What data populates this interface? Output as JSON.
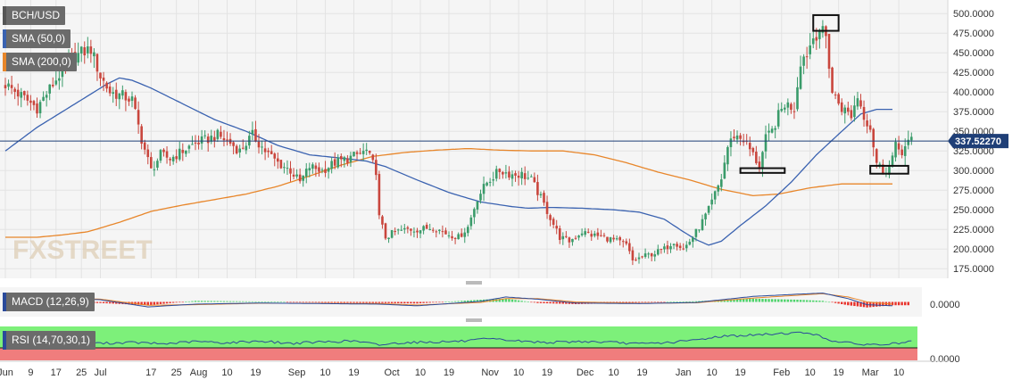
{
  "chart_data": {
    "type": "candlestick",
    "symbol": "BCH/USD",
    "current_price": "337.52270",
    "price_axis": {
      "ylim": [
        165,
        515
      ],
      "ticks": [
        {
          "v": 500,
          "label": "500.0000"
        },
        {
          "v": 475,
          "label": "475.0000"
        },
        {
          "v": 450,
          "label": "450.0000"
        },
        {
          "v": 425,
          "label": "425.0000"
        },
        {
          "v": 400,
          "label": "400.0000"
        },
        {
          "v": 375,
          "label": "375.0000"
        },
        {
          "v": 350,
          "label": "350.0000"
        },
        {
          "v": 325,
          "label": "325.0000"
        },
        {
          "v": 300,
          "label": "300.0000"
        },
        {
          "v": 275,
          "label": "275.0000"
        },
        {
          "v": 250,
          "label": "250.0000"
        },
        {
          "v": 225,
          "label": "225.0000"
        },
        {
          "v": 200,
          "label": "200.0000"
        },
        {
          "v": 175,
          "label": "175.0000"
        }
      ]
    },
    "x_axis_ticks": [
      {
        "day": 0,
        "label": "Jun"
      },
      {
        "day": 8,
        "label": "9"
      },
      {
        "day": 16,
        "label": "17"
      },
      {
        "day": 24,
        "label": "25"
      },
      {
        "day": 30,
        "label": "Jul"
      },
      {
        "day": 46,
        "label": "17"
      },
      {
        "day": 54,
        "label": "25"
      },
      {
        "day": 61,
        "label": "Aug"
      },
      {
        "day": 70,
        "label": "10"
      },
      {
        "day": 79,
        "label": "19"
      },
      {
        "day": 92,
        "label": "Sep"
      },
      {
        "day": 101,
        "label": "10"
      },
      {
        "day": 110,
        "label": "19"
      },
      {
        "day": 122,
        "label": "Oct"
      },
      {
        "day": 131,
        "label": "10"
      },
      {
        "day": 140,
        "label": "19"
      },
      {
        "day": 153,
        "label": "Nov"
      },
      {
        "day": 162,
        "label": "10"
      },
      {
        "day": 171,
        "label": "19"
      },
      {
        "day": 183,
        "label": "Dec"
      },
      {
        "day": 192,
        "label": "10"
      },
      {
        "day": 201,
        "label": "19"
      },
      {
        "day": 214,
        "label": "Jan"
      },
      {
        "day": 223,
        "label": "10"
      },
      {
        "day": 232,
        "label": "19"
      },
      {
        "day": 245,
        "label": "Feb"
      },
      {
        "day": 254,
        "label": "10"
      },
      {
        "day": 263,
        "label": "19"
      },
      {
        "day": 273,
        "label": "Mar"
      },
      {
        "day": 282,
        "label": "10"
      }
    ],
    "close_anchors": [
      [
        0,
        410
      ],
      [
        5,
        395
      ],
      [
        10,
        380
      ],
      [
        15,
        410
      ],
      [
        20,
        440
      ],
      [
        24,
        450
      ],
      [
        27,
        455
      ],
      [
        30,
        420
      ],
      [
        33,
        400
      ],
      [
        37,
        395
      ],
      [
        40,
        390
      ],
      [
        43,
        340
      ],
      [
        46,
        300
      ],
      [
        49,
        320
      ],
      [
        52,
        315
      ],
      [
        56,
        325
      ],
      [
        60,
        335
      ],
      [
        64,
        340
      ],
      [
        67,
        345
      ],
      [
        71,
        335
      ],
      [
        74,
        325
      ],
      [
        78,
        345
      ],
      [
        82,
        325
      ],
      [
        86,
        310
      ],
      [
        90,
        300
      ],
      [
        93,
        285
      ],
      [
        96,
        305
      ],
      [
        100,
        300
      ],
      [
        104,
        310
      ],
      [
        108,
        315
      ],
      [
        111,
        320
      ],
      [
        114,
        325
      ],
      [
        117,
        300
      ],
      [
        118,
        240
      ],
      [
        120,
        215
      ],
      [
        123,
        222
      ],
      [
        127,
        225
      ],
      [
        131,
        225
      ],
      [
        135,
        228
      ],
      [
        139,
        220
      ],
      [
        143,
        215
      ],
      [
        146,
        228
      ],
      [
        149,
        265
      ],
      [
        152,
        285
      ],
      [
        156,
        300
      ],
      [
        160,
        295
      ],
      [
        163,
        295
      ],
      [
        166,
        288
      ],
      [
        169,
        265
      ],
      [
        172,
        240
      ],
      [
        175,
        215
      ],
      [
        178,
        210
      ],
      [
        182,
        222
      ],
      [
        185,
        218
      ],
      [
        189,
        215
      ],
      [
        193,
        210
      ],
      [
        196,
        205
      ],
      [
        198,
        185
      ],
      [
        201,
        190
      ],
      [
        205,
        195
      ],
      [
        208,
        200
      ],
      [
        211,
        210
      ],
      [
        214,
        200
      ],
      [
        217,
        215
      ],
      [
        220,
        235
      ],
      [
        222,
        250
      ],
      [
        224,
        270
      ],
      [
        226,
        290
      ],
      [
        228,
        330
      ],
      [
        230,
        345
      ],
      [
        233,
        340
      ],
      [
        236,
        320
      ],
      [
        238,
        305
      ],
      [
        240,
        340
      ],
      [
        242,
        350
      ],
      [
        244,
        370
      ],
      [
        246,
        385
      ],
      [
        249,
        380
      ],
      [
        251,
        440
      ],
      [
        253,
        450
      ],
      [
        255,
        470
      ],
      [
        257,
        480
      ],
      [
        259,
        470
      ],
      [
        261,
        400
      ],
      [
        264,
        380
      ],
      [
        267,
        370
      ],
      [
        269,
        395
      ],
      [
        271,
        370
      ],
      [
        273,
        355
      ],
      [
        275,
        310
      ],
      [
        277,
        300
      ],
      [
        279,
        305
      ],
      [
        281,
        330
      ],
      [
        283,
        325
      ],
      [
        285,
        335
      ],
      [
        286,
        337.5
      ]
    ],
    "series": [
      {
        "name": "SMA (50,0)",
        "color": "#3a62b0",
        "anchors": [
          [
            0,
            325
          ],
          [
            10,
            355
          ],
          [
            18,
            375
          ],
          [
            26,
            395
          ],
          [
            32,
            410
          ],
          [
            36,
            418
          ],
          [
            40,
            415
          ],
          [
            46,
            405
          ],
          [
            56,
            385
          ],
          [
            66,
            365
          ],
          [
            76,
            350
          ],
          [
            86,
            332
          ],
          [
            96,
            320
          ],
          [
            108,
            315
          ],
          [
            114,
            312
          ],
          [
            120,
            305
          ],
          [
            130,
            288
          ],
          [
            140,
            272
          ],
          [
            150,
            260
          ],
          [
            160,
            254
          ],
          [
            165,
            252
          ],
          [
            172,
            253
          ],
          [
            182,
            252
          ],
          [
            192,
            250
          ],
          [
            200,
            247
          ],
          [
            208,
            238
          ],
          [
            214,
            222
          ],
          [
            218,
            212
          ],
          [
            222,
            205
          ],
          [
            226,
            210
          ],
          [
            232,
            230
          ],
          [
            240,
            255
          ],
          [
            248,
            285
          ],
          [
            256,
            320
          ],
          [
            264,
            350
          ],
          [
            270,
            372
          ],
          [
            275,
            378
          ],
          [
            280,
            378
          ]
        ]
      },
      {
        "name": "SMA (200,0)",
        "color": "#e8862a",
        "anchors": [
          [
            0,
            215
          ],
          [
            10,
            215
          ],
          [
            18,
            218
          ],
          [
            26,
            222
          ],
          [
            36,
            234
          ],
          [
            46,
            248
          ],
          [
            56,
            256
          ],
          [
            66,
            263
          ],
          [
            76,
            270
          ],
          [
            86,
            280
          ],
          [
            96,
            293
          ],
          [
            106,
            307
          ],
          [
            116,
            318
          ],
          [
            126,
            323
          ],
          [
            136,
            326
          ],
          [
            146,
            328
          ],
          [
            156,
            326
          ],
          [
            166,
            325
          ],
          [
            176,
            325
          ],
          [
            186,
            320
          ],
          [
            196,
            310
          ],
          [
            206,
            298
          ],
          [
            216,
            288
          ],
          [
            226,
            276
          ],
          [
            236,
            268
          ],
          [
            244,
            270
          ],
          [
            254,
            278
          ],
          [
            264,
            283
          ],
          [
            274,
            283
          ],
          [
            280,
            283
          ]
        ]
      }
    ],
    "macd": {
      "label": "MACD (12,26,9)",
      "ylim": [
        -1,
        1
      ],
      "tick_label": "0.0000",
      "tick_value": 0,
      "macd_anchors": [
        [
          0,
          0.55
        ],
        [
          15,
          0.35
        ],
        [
          30,
          0.2
        ],
        [
          45,
          -0.45
        ],
        [
          60,
          -0.2
        ],
        [
          80,
          -0.1
        ],
        [
          100,
          -0.15
        ],
        [
          118,
          -0.2
        ],
        [
          130,
          -0.35
        ],
        [
          150,
          0.05
        ],
        [
          158,
          0.45
        ],
        [
          168,
          0.25
        ],
        [
          180,
          -0.1
        ],
        [
          200,
          -0.15
        ],
        [
          218,
          -0.05
        ],
        [
          236,
          0.5
        ],
        [
          250,
          0.7
        ],
        [
          258,
          0.8
        ],
        [
          266,
          0.3
        ],
        [
          272,
          -0.25
        ],
        [
          280,
          -0.35
        ]
      ],
      "signal_anchors": [
        [
          0,
          0.5
        ],
        [
          15,
          0.4
        ],
        [
          30,
          0.25
        ],
        [
          45,
          -0.3
        ],
        [
          60,
          -0.25
        ],
        [
          80,
          -0.12
        ],
        [
          100,
          -0.12
        ],
        [
          118,
          -0.15
        ],
        [
          130,
          -0.28
        ],
        [
          150,
          -0.05
        ],
        [
          158,
          0.3
        ],
        [
          168,
          0.3
        ],
        [
          180,
          0.0
        ],
        [
          200,
          -0.12
        ],
        [
          218,
          -0.08
        ],
        [
          236,
          0.35
        ],
        [
          250,
          0.6
        ],
        [
          258,
          0.75
        ],
        [
          266,
          0.45
        ],
        [
          272,
          0.0
        ],
        [
          280,
          -0.2
        ]
      ]
    },
    "rsi": {
      "label": "RSI (14,70,30,1)",
      "overbought": 70,
      "oversold": 30,
      "tick_label": "0.0000",
      "tick_value": 0,
      "anchors": [
        [
          0,
          55
        ],
        [
          10,
          48
        ],
        [
          20,
          52
        ],
        [
          30,
          45
        ],
        [
          40,
          47
        ],
        [
          50,
          44
        ],
        [
          60,
          49
        ],
        [
          70,
          46
        ],
        [
          80,
          50
        ],
        [
          90,
          45
        ],
        [
          100,
          48
        ],
        [
          110,
          50
        ],
        [
          118,
          42
        ],
        [
          126,
          47
        ],
        [
          136,
          48
        ],
        [
          146,
          50
        ],
        [
          152,
          54
        ],
        [
          158,
          52
        ],
        [
          164,
          49
        ],
        [
          172,
          47
        ],
        [
          182,
          49
        ],
        [
          192,
          47
        ],
        [
          200,
          44
        ],
        [
          210,
          47
        ],
        [
          218,
          52
        ],
        [
          226,
          60
        ],
        [
          236,
          62
        ],
        [
          246,
          66
        ],
        [
          254,
          67
        ],
        [
          260,
          52
        ],
        [
          268,
          44
        ],
        [
          276,
          42
        ],
        [
          286,
          48
        ]
      ]
    },
    "annotations": [
      {
        "type": "box",
        "label": "top",
        "day_from": 255,
        "day_to": 263,
        "y_from": 478,
        "y_to": 498
      },
      {
        "type": "box",
        "label": "support-left",
        "day_from": 232,
        "day_to": 246,
        "y_from": 297,
        "y_to": 303
      },
      {
        "type": "box",
        "label": "support-right",
        "day_from": 273,
        "day_to": 285,
        "y_from": 296,
        "y_to": 306
      }
    ],
    "watermark": "FXSTREET",
    "legend": [
      {
        "text": "BCH/USD",
        "color": "#6b6b6b"
      },
      {
        "text": "SMA (50,0)",
        "color": "#3a62b0"
      },
      {
        "text": "SMA (200,0)",
        "color": "#e8862a"
      }
    ]
  }
}
